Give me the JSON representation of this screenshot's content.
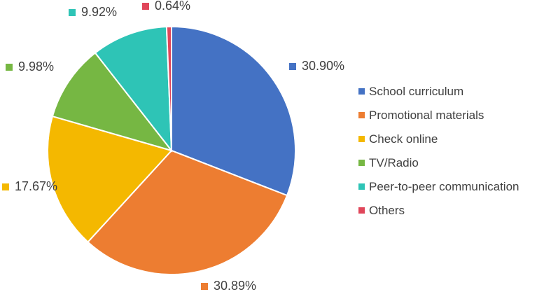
{
  "chart_data": {
    "type": "pie",
    "title": "",
    "legend_position": "right",
    "slices": [
      {
        "label": "School curriculum",
        "value": 30.9,
        "display": "30.90%",
        "color": "#4472C4"
      },
      {
        "label": "Promotional materials",
        "value": 30.89,
        "display": "30.89%",
        "color": "#ED7D31"
      },
      {
        "label": "Check online",
        "value": 17.67,
        "display": "17.67%",
        "color": "#F4B800"
      },
      {
        "label": "TV/Radio",
        "value": 9.98,
        "display": "9.98%",
        "color": "#76B743"
      },
      {
        "label": "Peer-to-peer communication",
        "value": 9.92,
        "display": "9.92%",
        "color": "#2EC4B6"
      },
      {
        "label": "Others",
        "value": 0.64,
        "display": "0.64%",
        "color": "#E0465A"
      }
    ]
  }
}
